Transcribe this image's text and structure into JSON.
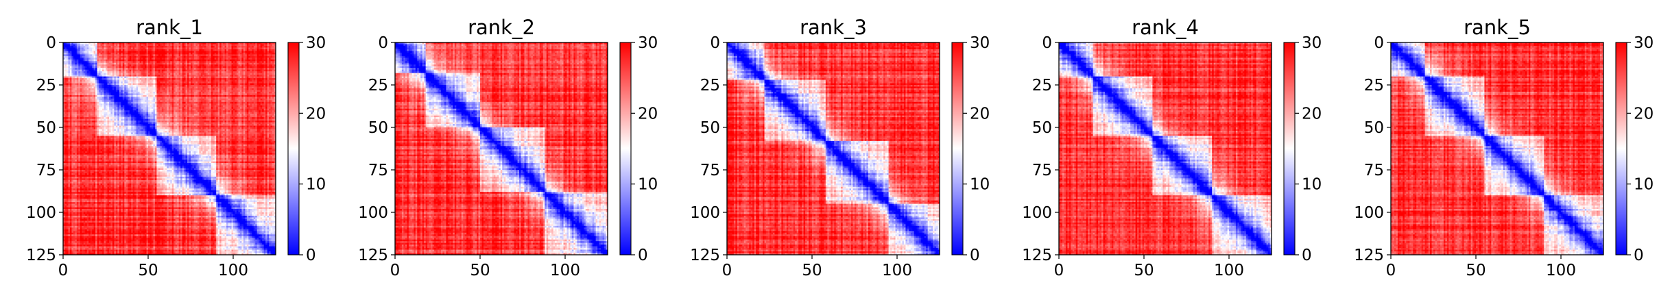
{
  "chart_data": {
    "type": "heatmap",
    "colormap": "bwr",
    "colormap_colors": {
      "low": "#0000ff",
      "mid": "#ffffff",
      "high": "#ff0000"
    },
    "panels": [
      {
        "title": "rank_1",
        "blocks": [
          [
            0,
            20
          ],
          [
            20,
            55
          ],
          [
            55,
            90
          ],
          [
            90,
            125
          ]
        ]
      },
      {
        "title": "rank_2",
        "blocks": [
          [
            0,
            18
          ],
          [
            18,
            50
          ],
          [
            50,
            88
          ],
          [
            88,
            125
          ]
        ]
      },
      {
        "title": "rank_3",
        "blocks": [
          [
            0,
            22
          ],
          [
            22,
            58
          ],
          [
            58,
            95
          ],
          [
            95,
            125
          ]
        ]
      },
      {
        "title": "rank_4",
        "blocks": [
          [
            0,
            20
          ],
          [
            20,
            55
          ],
          [
            55,
            90
          ],
          [
            90,
            125
          ]
        ]
      },
      {
        "title": "rank_5",
        "blocks": [
          [
            0,
            20
          ],
          [
            20,
            55
          ],
          [
            55,
            90
          ],
          [
            90,
            125
          ]
        ]
      }
    ],
    "xlim": [
      0,
      125
    ],
    "ylim": [
      125,
      0
    ],
    "x_ticks": [
      "0",
      "50",
      "100"
    ],
    "y_ticks": [
      "0",
      "25",
      "50",
      "75",
      "100",
      "125"
    ],
    "colorbar": {
      "range": [
        0,
        30
      ],
      "ticks": [
        "0",
        "10",
        "20",
        "30"
      ]
    },
    "matrix_size": 125,
    "near_value": 4,
    "far_value": 27
  }
}
